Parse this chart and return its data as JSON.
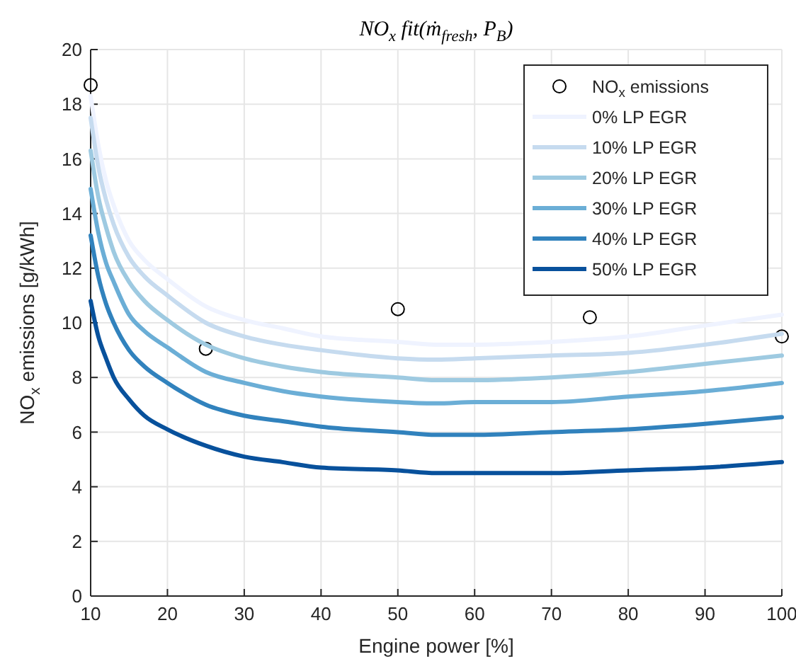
{
  "chart_data": {
    "type": "line",
    "title": "NO$_{x}$ fit(ṁ$_{fresh}$, P$_{B}$)",
    "xlabel": "Engine power [%]",
    "ylabel": "NO$_{x}$ emissions [g/kWh]",
    "xlim": [
      10,
      100
    ],
    "xticks": [
      10,
      20,
      30,
      40,
      50,
      60,
      70,
      80,
      90,
      100
    ],
    "ylim": [
      0,
      20
    ],
    "yticks": [
      0,
      2,
      4,
      6,
      8,
      10,
      12,
      14,
      16,
      18,
      20
    ],
    "grid": true,
    "legend": "top right",
    "line_style": "solid",
    "x": [
      10,
      11,
      12,
      13,
      15,
      17,
      20,
      25,
      30,
      35,
      40,
      50,
      55,
      60,
      70,
      80,
      90,
      100
    ],
    "series": [
      {
        "name": "NO$_{x}$ emissions",
        "type": "scatter",
        "marker": "circle",
        "color": "#000000",
        "x": [
          10,
          25,
          50,
          75,
          100
        ],
        "values": [
          18.7,
          9.05,
          10.5,
          10.2,
          9.5
        ]
      },
      {
        "name": "0% LP EGR",
        "color": "#eff3ff",
        "values": [
          18.3,
          16.5,
          15.2,
          14.3,
          13.0,
          12.3,
          11.6,
          10.6,
          10.1,
          9.8,
          9.5,
          9.3,
          9.2,
          9.2,
          9.3,
          9.5,
          9.9,
          10.3
        ]
      },
      {
        "name": "10% LP EGR",
        "color": "#c6dbef",
        "values": [
          17.5,
          15.7,
          14.5,
          13.6,
          12.4,
          11.7,
          11.0,
          10.0,
          9.5,
          9.2,
          9.0,
          8.7,
          8.65,
          8.7,
          8.8,
          8.9,
          9.2,
          9.6
        ]
      },
      {
        "name": "20% LP EGR",
        "color": "#9ecae1",
        "values": [
          16.3,
          14.6,
          13.5,
          12.6,
          11.5,
          10.8,
          10.1,
          9.2,
          8.7,
          8.4,
          8.2,
          8.0,
          7.9,
          7.9,
          8.0,
          8.2,
          8.5,
          8.8
        ]
      },
      {
        "name": "30% LP EGR",
        "color": "#6baed6",
        "values": [
          14.9,
          13.3,
          12.2,
          11.5,
          10.3,
          9.7,
          9.1,
          8.2,
          7.8,
          7.5,
          7.3,
          7.1,
          7.05,
          7.1,
          7.1,
          7.3,
          7.5,
          7.8
        ]
      },
      {
        "name": "40% LP EGR",
        "color": "#3182bd",
        "values": [
          13.2,
          11.7,
          10.7,
          10.0,
          9.0,
          8.4,
          7.8,
          7.0,
          6.6,
          6.4,
          6.2,
          6.0,
          5.9,
          5.9,
          6.0,
          6.1,
          6.3,
          6.55
        ]
      },
      {
        "name": "50% LP EGR",
        "color": "#08519c",
        "values": [
          10.8,
          9.5,
          8.7,
          8.0,
          7.2,
          6.6,
          6.1,
          5.5,
          5.1,
          4.9,
          4.7,
          4.6,
          4.5,
          4.5,
          4.5,
          4.6,
          4.7,
          4.9
        ]
      }
    ]
  }
}
